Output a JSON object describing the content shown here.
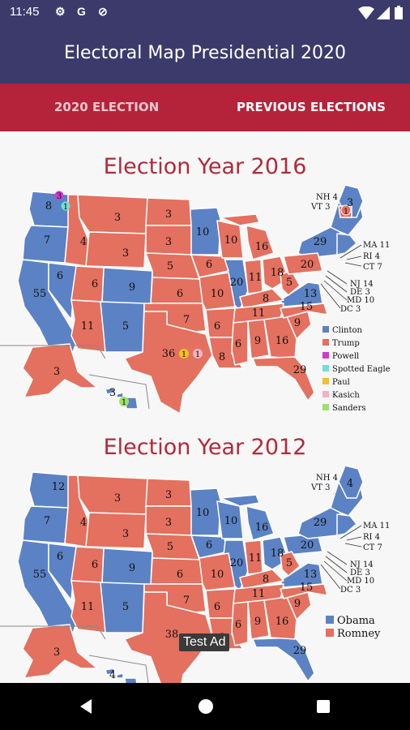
{
  "status_bar": {
    "time": "11:45",
    "icons": [
      "gear-icon",
      "google-icon",
      "no-sim-icon",
      "wifi-icon",
      "signal-icon",
      "battery-icon"
    ]
  },
  "app_bar": {
    "title": "Electoral Map Presidential 2020"
  },
  "tabs": [
    {
      "label": "2020 ELECTION"
    },
    {
      "label": "PREVIOUS ELECTIONS"
    }
  ],
  "colors": {
    "clinton": "#5b82c4",
    "trump": "#e4705f",
    "powell": "#cc3ccc",
    "spotted_eagle": "#6fe0d6",
    "paul": "#f2c21e",
    "kasich": "#f1b3c0",
    "sanders": "#9ee06c",
    "obama": "#5b82c4",
    "romney": "#e4705f"
  },
  "elections": [
    {
      "heading": "Election Year 2016",
      "legend": [
        "Clinton",
        "Trump",
        "Powell",
        "Spotted Eagle",
        "Paul",
        "Kasich",
        "Sanders"
      ],
      "callouts": [
        "NH 4",
        "VT 3",
        "MA 11",
        "RI 4",
        "CT 7",
        "NJ 14",
        "DE 3",
        "MD 10",
        "DC 3"
      ],
      "states": {
        "WA": "8",
        "OR": "7",
        "CA": "55",
        "NV": "6",
        "ID": "4",
        "MT": "3",
        "WY": "3",
        "UT": "6",
        "AZ": "11",
        "CO": "9",
        "NM": "5",
        "ND": "3",
        "SD": "3",
        "NE": "5",
        "KS": "6",
        "OK": "7",
        "TX": "36",
        "MN": "10",
        "IA": "6",
        "MO": "10",
        "AR": "6",
        "LA": "8",
        "WI": "10",
        "IL": "20",
        "MI": "16",
        "IN": "11",
        "OH": "18",
        "KY": "8",
        "TN": "11",
        "MS": "6",
        "AL": "9",
        "GA": "16",
        "FL": "29",
        "SC": "9",
        "NC": "15",
        "VA": "13",
        "WV": "5",
        "PA": "20",
        "NY": "29",
        "ME": "3",
        "ME_CD": "1",
        "AK": "3",
        "HI": "3",
        "HI_SANDERS": "1",
        "WA_POWELL": "3",
        "WA_EAGLE": "1",
        "TX_PAUL": "1",
        "TX_KASICH": "1"
      }
    },
    {
      "heading": "Election Year 2012",
      "legend": [
        "Obama",
        "Romney"
      ],
      "callouts": [
        "NH 4",
        "VT 3",
        "MA 11",
        "RI 4",
        "CT 7",
        "NJ 14",
        "DE 3",
        "MD 10",
        "DC 3"
      ],
      "states": {
        "WA": "12",
        "OR": "7",
        "CA": "55",
        "NV": "6",
        "ID": "4",
        "MT": "3",
        "WY": "3",
        "UT": "6",
        "AZ": "11",
        "CO": "9",
        "NM": "5",
        "ND": "3",
        "SD": "3",
        "NE": "5",
        "KS": "6",
        "OK": "7",
        "TX": "38",
        "MN": "10",
        "IA": "6",
        "MO": "10",
        "AR": "6",
        "LA": "8",
        "WI": "10",
        "IL": "20",
        "MI": "16",
        "IN": "11",
        "OH": "18",
        "KY": "8",
        "TN": "11",
        "MS": "6",
        "AL": "9",
        "GA": "16",
        "FL": "29",
        "SC": "9",
        "NC": "15",
        "VA": "13",
        "WV": "5",
        "PA": "20",
        "NY": "29",
        "ME": "4",
        "AK": "3",
        "HI": "4"
      }
    }
  ],
  "ad_toast": "Test Ad"
}
